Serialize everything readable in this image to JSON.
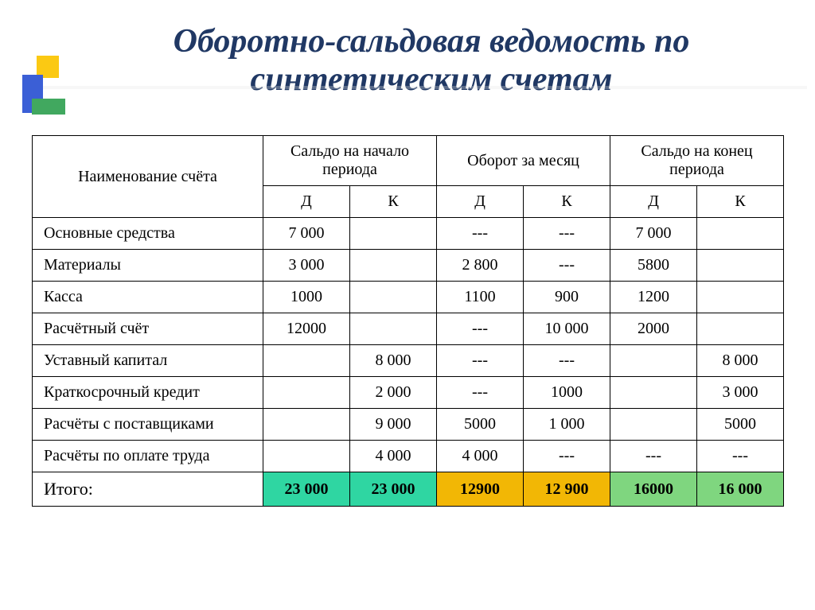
{
  "title": "Оборотно-сальдовая ведомость по синтетическим счетам",
  "table": {
    "type": "table",
    "background_color": "#ffffff",
    "border_color": "#000000",
    "font_family": "Times New Roman",
    "header_fontsize": 20,
    "cell_fontsize": 20,
    "total_fontsize": 22,
    "col_widths": {
      "name": 290,
      "num": 109
    },
    "headers": {
      "name": "Наименование счёта",
      "group1": "Сальдо на начало периода",
      "group2": "Оборот за месяц",
      "group3": "Сальдо на конец периода",
      "d": "Д",
      "k": "К"
    },
    "rows": [
      {
        "name": "Основные средства",
        "sd": "7 000",
        "sk": "",
        "od": "---",
        "ok": "---",
        "ed": "7 000",
        "ek": ""
      },
      {
        "name": "Материалы",
        "sd": "3 000",
        "sk": "",
        "od": "2 800",
        "ok": "---",
        "ed": "5800",
        "ek": ""
      },
      {
        "name": "Касса",
        "sd": "1000",
        "sk": "",
        "od": "1100",
        "ok": "900",
        "ed": "1200",
        "ek": ""
      },
      {
        "name": "Расчётный счёт",
        "sd": "12000",
        "sk": "",
        "od": "---",
        "ok": "10 000",
        "ed": "2000",
        "ek": ""
      },
      {
        "name": "Уставный капитал",
        "sd": "",
        "sk": "8 000",
        "od": "---",
        "ok": "---",
        "ed": "",
        "ek": "8 000"
      },
      {
        "name": "Краткосрочный кредит",
        "sd": "",
        "sk": "2 000",
        "od": "---",
        "ok": "1000",
        "ed": "",
        "ek": "3 000"
      },
      {
        "name": "Расчёты с поставщиками",
        "sd": "",
        "sk": "9 000",
        "od": "5000",
        "ok": "1 000",
        "ed": "",
        "ek": "5000"
      },
      {
        "name": "Расчёты по  оплате труда",
        "sd": "",
        "sk": "4 000",
        "od": "4 000",
        "ok": "---",
        "ed": "---",
        "ek": "---"
      }
    ],
    "total": {
      "name": "Итого:",
      "sd": "23 000",
      "sk": "23 000",
      "od": "12900",
      "ok": "12 900",
      "ed": "16000",
      "ek": "16 000",
      "colors": {
        "start": "#2fd6a2",
        "turn": "#f2b705",
        "end": "#7fd67f"
      }
    }
  },
  "title_style": {
    "color": "#203864",
    "fontsize": 42,
    "font_weight": 700,
    "font_style": "italic"
  },
  "deco_colors": {
    "yellow": "#fbc913",
    "blue": "#3b5fd6",
    "green": "#41a85f"
  }
}
